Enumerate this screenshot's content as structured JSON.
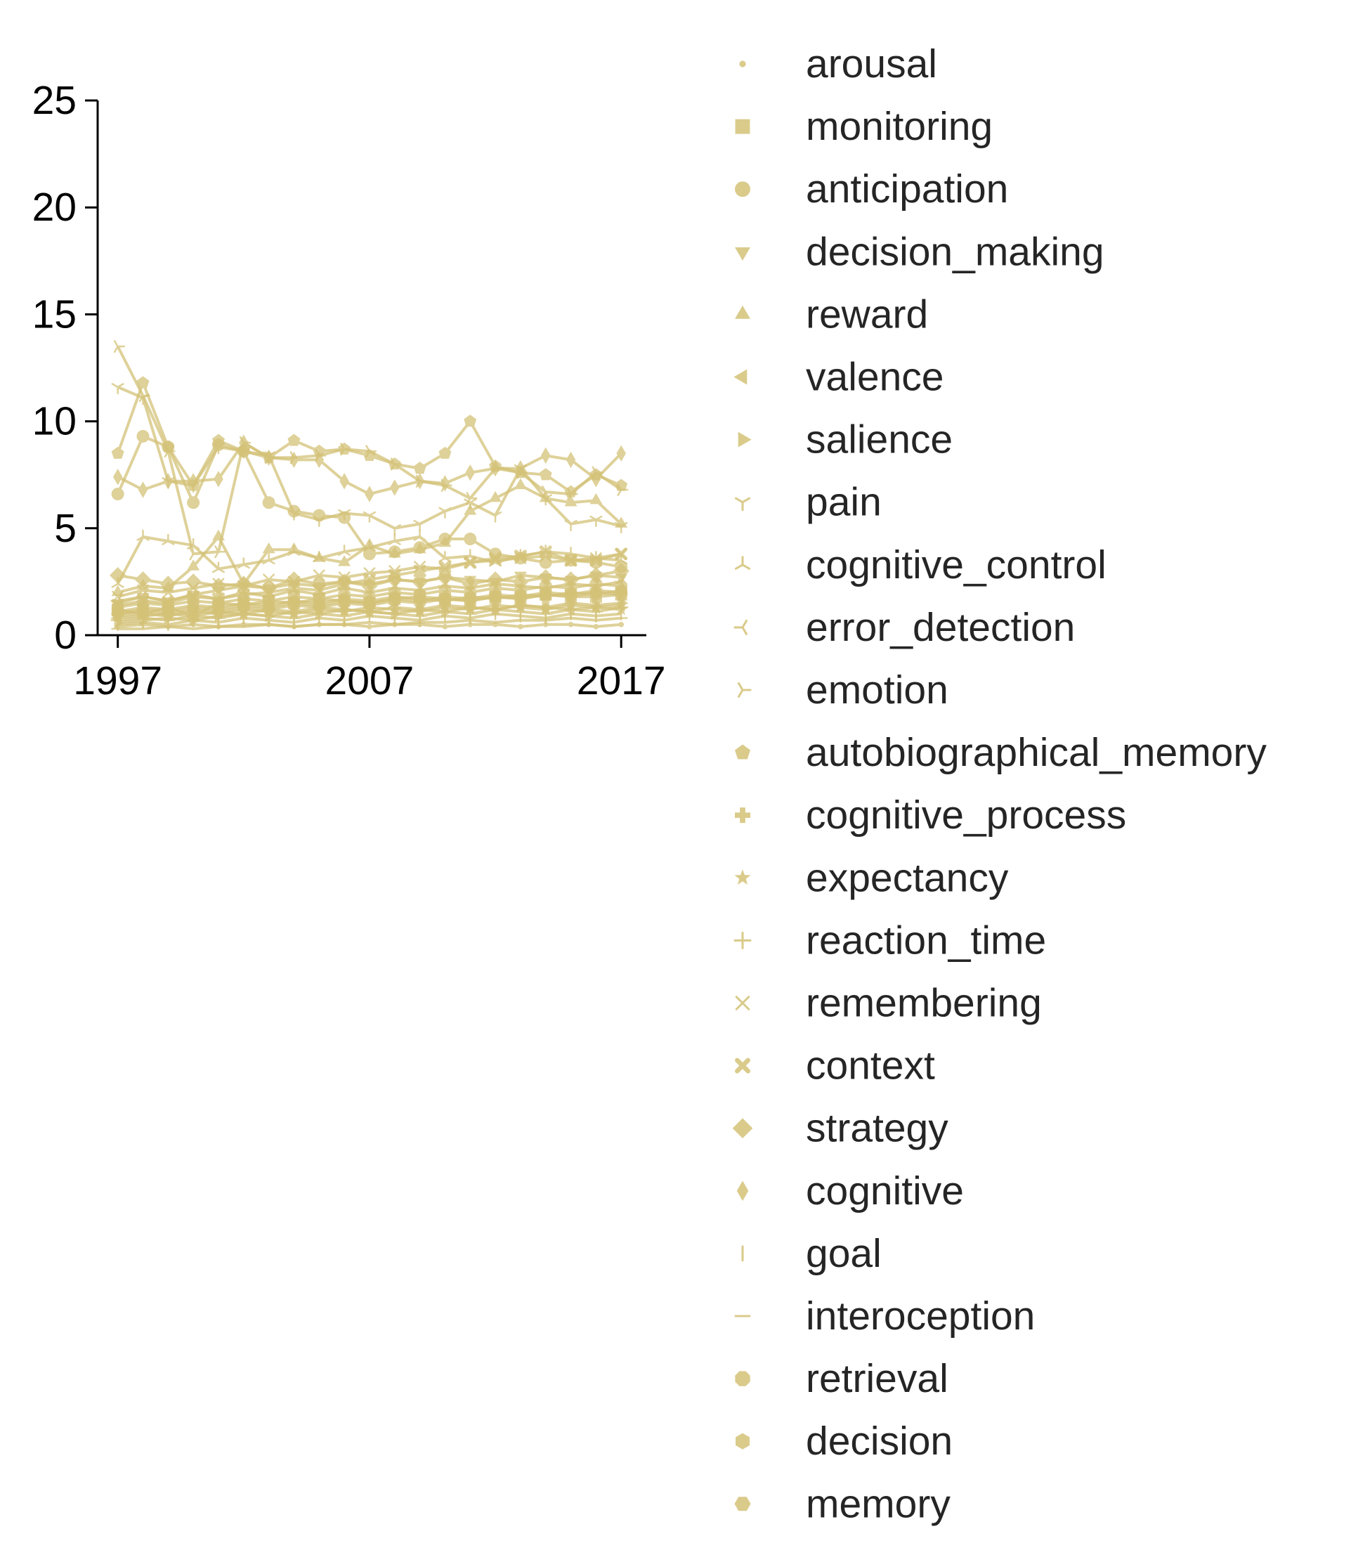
{
  "chart_data": {
    "type": "line",
    "title": "",
    "xlabel": "",
    "ylabel": "",
    "xlim": [
      1996.2,
      2018
    ],
    "ylim": [
      0,
      25
    ],
    "xticks": [
      1997,
      2007,
      2017
    ],
    "yticks": [
      0,
      5,
      10,
      15,
      20,
      25
    ],
    "grid": false,
    "legend_position": "right",
    "color": "#d4c277",
    "x": [
      1997,
      1998,
      1999,
      2000,
      2001,
      2002,
      2003,
      2004,
      2005,
      2006,
      2007,
      2008,
      2009,
      2010,
      2011,
      2012,
      2013,
      2014,
      2015,
      2016,
      2017
    ],
    "series": [
      {
        "name": "arousal",
        "marker": "point",
        "values": [
          0.4,
          0.5,
          0.4,
          0.5,
          0.4,
          0.5,
          0.5,
          0.4,
          0.5,
          0.5,
          0.4,
          0.5,
          0.5,
          0.4,
          0.5,
          0.5,
          0.4,
          0.5,
          0.5,
          0.4,
          0.5
        ]
      },
      {
        "name": "monitoring",
        "marker": "square",
        "values": [
          1.2,
          1.0,
          1.3,
          0.9,
          1.5,
          1.4,
          1.6,
          1.5,
          1.7,
          1.6,
          1.5,
          1.7,
          1.8,
          1.7,
          1.6,
          1.8,
          1.7,
          1.9,
          1.8,
          1.8,
          1.9
        ]
      },
      {
        "name": "anticipation",
        "marker": "circle",
        "values": [
          6.6,
          9.3,
          8.8,
          6.2,
          8.9,
          8.6,
          6.2,
          5.8,
          5.6,
          5.5,
          3.8,
          3.9,
          4.1,
          4.5,
          4.5,
          3.8,
          3.6,
          3.4,
          3.5,
          3.4,
          3.2
        ]
      },
      {
        "name": "decision_making",
        "marker": "triangle-down",
        "values": [
          1.5,
          1.8,
          1.6,
          1.9,
          2.1,
          2.3,
          2.2,
          2.4,
          2.3,
          2.5,
          2.4,
          2.6,
          2.5,
          2.7,
          2.6,
          2.5,
          2.8,
          2.7,
          2.6,
          2.8,
          2.7
        ]
      },
      {
        "name": "reward",
        "marker": "triangle-up",
        "values": [
          2.0,
          2.3,
          2.2,
          3.2,
          4.6,
          2.4,
          4.0,
          4.0,
          3.6,
          3.4,
          4.2,
          3.8,
          4.0,
          4.3,
          5.8,
          6.4,
          7.0,
          6.4,
          6.2,
          6.3,
          5.2
        ]
      },
      {
        "name": "valence",
        "marker": "triangle-left",
        "values": [
          0.8,
          0.9,
          1.0,
          0.9,
          1.1,
          1.0,
          1.2,
          1.1,
          1.3,
          1.2,
          1.1,
          1.3,
          1.2,
          1.4,
          1.3,
          1.2,
          1.4,
          1.3,
          1.2,
          1.3,
          1.4
        ]
      },
      {
        "name": "salience",
        "marker": "triangle-right",
        "values": [
          0.6,
          0.7,
          0.8,
          0.7,
          0.9,
          1.0,
          0.9,
          1.1,
          1.0,
          1.2,
          1.1,
          1.0,
          1.2,
          1.1,
          1.3,
          1.2,
          1.4,
          1.3,
          1.5,
          1.4,
          1.5
        ]
      },
      {
        "name": "pain",
        "marker": "tri-down",
        "values": [
          11.6,
          11.1,
          7.2,
          7.0,
          8.8,
          8.6,
          8.4,
          5.7,
          5.4,
          5.7,
          5.6,
          5.0,
          5.2,
          5.8,
          6.2,
          5.6,
          7.8,
          6.4,
          5.2,
          5.4,
          5.1
        ]
      },
      {
        "name": "cognitive_control",
        "marker": "tri-up",
        "values": [
          2.4,
          4.6,
          4.4,
          4.2,
          3.1,
          3.3,
          3.5,
          3.9,
          3.6,
          3.9,
          4.1,
          4.4,
          4.6,
          3.6,
          3.7,
          3.4,
          3.7,
          3.9,
          3.8,
          3.6,
          3.5
        ]
      },
      {
        "name": "error_detection",
        "marker": "tri-left",
        "values": [
          1.6,
          1.8,
          1.6,
          1.9,
          1.7,
          2.0,
          1.8,
          2.1,
          1.9,
          2.2,
          2.0,
          2.2,
          2.1,
          2.3,
          2.2,
          2.4,
          2.3,
          2.2,
          2.4,
          2.3,
          2.5
        ]
      },
      {
        "name": "emotion",
        "marker": "tri-right",
        "values": [
          13.5,
          11.2,
          8.6,
          3.8,
          3.9,
          9.0,
          8.3,
          8.3,
          8.4,
          8.7,
          8.6,
          8.0,
          7.2,
          7.0,
          6.4,
          7.8,
          7.6,
          6.7,
          6.6,
          7.6,
          6.8
        ]
      },
      {
        "name": "autobiographical_memory",
        "marker": "pentagon",
        "values": [
          8.5,
          11.8,
          8.8,
          7.0,
          9.1,
          8.6,
          8.3,
          9.1,
          8.6,
          8.7,
          8.4,
          8.0,
          7.8,
          8.5,
          10.0,
          7.9,
          7.6,
          7.5,
          6.7,
          7.5,
          7.0
        ]
      },
      {
        "name": "cognitive_process",
        "marker": "plus-filled",
        "values": [
          1.0,
          1.2,
          1.1,
          1.3,
          1.2,
          1.4,
          1.3,
          1.5,
          1.4,
          1.6,
          1.5,
          1.7,
          1.6,
          1.8,
          1.7,
          1.9,
          1.8,
          2.0,
          1.9,
          2.1,
          2.0
        ]
      },
      {
        "name": "expectancy",
        "marker": "star",
        "values": [
          0.9,
          1.0,
          0.9,
          1.1,
          1.0,
          1.2,
          1.1,
          1.0,
          1.2,
          1.1,
          1.3,
          1.2,
          1.1,
          1.3,
          1.2,
          1.4,
          1.3,
          1.2,
          1.4,
          1.3,
          1.2
        ]
      },
      {
        "name": "reaction_time",
        "marker": "plus",
        "values": [
          0.7,
          0.8,
          0.7,
          0.9,
          0.8,
          1.0,
          0.9,
          0.8,
          1.0,
          0.9,
          1.1,
          1.0,
          0.9,
          1.1,
          1.0,
          1.2,
          1.1,
          1.0,
          1.2,
          1.1,
          1.3
        ]
      },
      {
        "name": "remembering",
        "marker": "x",
        "values": [
          1.8,
          2.1,
          2.0,
          2.2,
          2.4,
          2.3,
          2.6,
          2.5,
          2.8,
          2.7,
          2.9,
          3.0,
          3.2,
          3.1,
          3.4,
          3.5,
          3.6,
          3.7,
          3.5,
          3.6,
          3.8
        ]
      },
      {
        "name": "context",
        "marker": "x-filled",
        "values": [
          1.4,
          1.6,
          1.5,
          1.8,
          1.7,
          1.9,
          2.0,
          2.2,
          2.1,
          2.4,
          2.6,
          2.8,
          3.0,
          3.2,
          3.4,
          3.6,
          3.7,
          3.9,
          3.5,
          3.5,
          3.8
        ]
      },
      {
        "name": "strategy",
        "marker": "diamond",
        "values": [
          2.8,
          2.6,
          2.4,
          2.5,
          2.3,
          2.4,
          2.2,
          2.6,
          2.4,
          2.5,
          2.3,
          2.6,
          2.5,
          2.7,
          2.4,
          2.6,
          2.5,
          2.7,
          2.6,
          2.8,
          3.0
        ]
      },
      {
        "name": "cognitive",
        "marker": "thin-diamond",
        "values": [
          7.4,
          6.8,
          7.2,
          7.2,
          7.3,
          9.0,
          8.3,
          8.2,
          8.2,
          7.2,
          6.6,
          6.9,
          7.2,
          7.1,
          7.6,
          7.8,
          7.8,
          8.4,
          8.2,
          7.3,
          8.5
        ]
      },
      {
        "name": "goal",
        "marker": "vline",
        "values": [
          0.5,
          0.6,
          0.5,
          0.7,
          0.6,
          0.8,
          0.7,
          0.6,
          0.8,
          0.7,
          0.9,
          0.8,
          0.7,
          0.9,
          0.8,
          1.0,
          0.9,
          0.8,
          1.0,
          0.9,
          1.0
        ]
      },
      {
        "name": "interoception",
        "marker": "hline",
        "values": [
          0.3,
          0.3,
          0.4,
          0.3,
          0.4,
          0.4,
          0.5,
          0.4,
          0.5,
          0.5,
          0.6,
          0.5,
          0.6,
          0.6,
          0.7,
          0.6,
          0.7,
          0.7,
          0.8,
          0.7,
          0.8
        ]
      },
      {
        "name": "retrieval",
        "marker": "octagon",
        "values": [
          1.3,
          1.5,
          1.4,
          1.6,
          1.5,
          1.7,
          1.6,
          1.8,
          1.7,
          1.9,
          1.8,
          2.0,
          1.9,
          2.1,
          2.0,
          2.2,
          2.1,
          2.3,
          2.2,
          2.4,
          2.3
        ]
      },
      {
        "name": "decision",
        "marker": "hexagon",
        "values": [
          1.1,
          1.3,
          1.2,
          1.4,
          1.3,
          1.5,
          1.4,
          1.6,
          1.5,
          1.7,
          1.6,
          1.8,
          1.7,
          1.6,
          1.8,
          1.7,
          1.9,
          1.8,
          2.0,
          1.9,
          2.1
        ]
      },
      {
        "name": "memory",
        "marker": "hexagon-flat",
        "values": [
          1.0,
          1.1,
          1.0,
          1.2,
          1.1,
          1.3,
          1.2,
          1.4,
          1.3,
          1.5,
          1.4,
          1.6,
          1.5,
          1.7,
          1.6,
          1.8,
          1.7,
          1.9,
          1.8,
          2.0,
          1.9
        ]
      }
    ]
  }
}
